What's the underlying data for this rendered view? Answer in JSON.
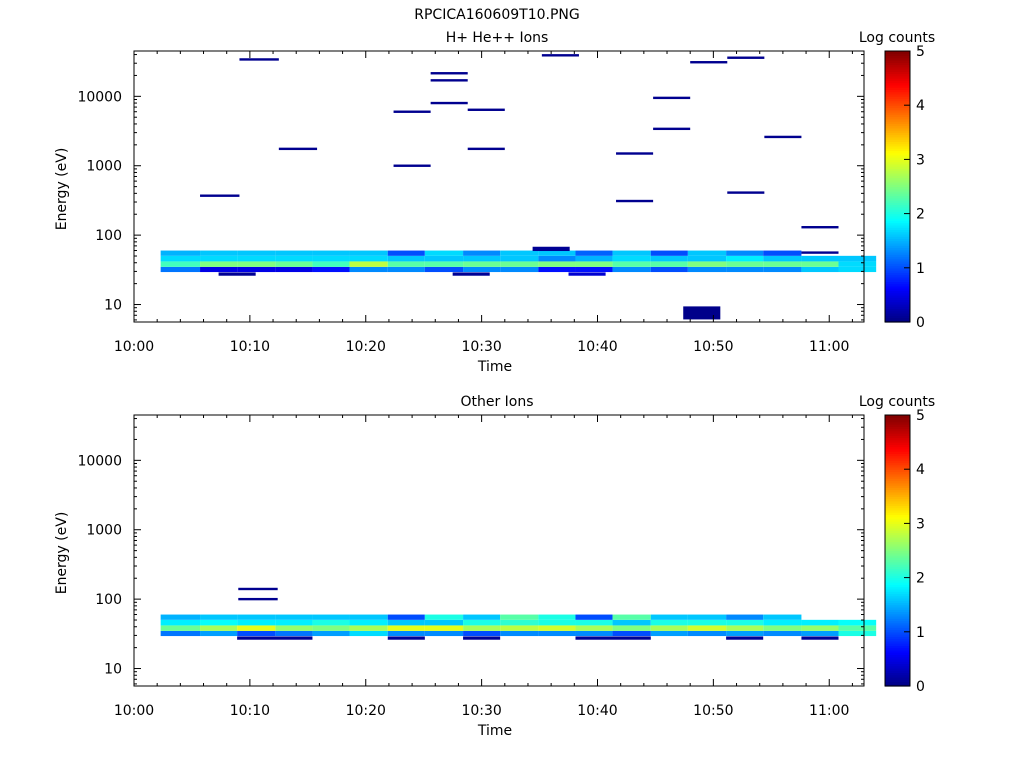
{
  "figure_title": "RPCICA160609T10.PNG",
  "chart_data": [
    {
      "type": "heatmap",
      "title": "H+ He++ Ions",
      "xlabel": "Time",
      "ylabel": "Energy (eV)",
      "x_range": [
        "10:00",
        "11:03"
      ],
      "x_ticks": [
        "10:00",
        "10:10",
        "10:20",
        "10:30",
        "10:40",
        "10:50",
        "11:00"
      ],
      "y_scale": "log",
      "y_range": [
        5.6,
        45000
      ],
      "y_ticks": [
        "10",
        "100",
        "1000",
        "10000"
      ],
      "colorbar": {
        "label": "Log counts",
        "ticks": [
          "0",
          "1",
          "2",
          "3",
          "4",
          "5"
        ],
        "range": [
          0,
          5
        ],
        "colormap": "jet"
      },
      "time_bins_min": [
        2.3,
        5.7,
        8.9,
        12.2,
        15.4,
        18.6,
        21.9,
        25.1,
        28.4,
        31.6,
        34.9,
        38.1,
        41.3,
        44.6,
        47.8,
        51.1,
        54.3,
        57.6,
        60.8
      ],
      "energy_rows_eV": [
        32,
        38,
        46,
        55
      ],
      "grid_rows": [
        [
          1.2,
          0.5,
          0.5,
          0.5,
          0.7,
          1.3,
          1.3,
          1.0,
          1.3,
          1.3,
          0.7,
          0.7,
          1.3,
          1.0,
          1.3,
          1.3,
          1.3,
          1.6,
          1.7
        ],
        [
          2.2,
          2.5,
          2.5,
          2.4,
          2.2,
          2.8,
          2.3,
          2.3,
          2.4,
          2.4,
          2.5,
          2.5,
          2.3,
          2.3,
          2.5,
          2.4,
          2.4,
          2.4,
          1.7
        ],
        [
          1.7,
          1.7,
          1.7,
          1.7,
          1.7,
          1.7,
          1.6,
          1.6,
          1.6,
          1.6,
          1.3,
          1.5,
          1.7,
          1.6,
          1.6,
          1.8,
          1.6,
          1.6,
          1.6
        ],
        [
          1.5,
          1.6,
          1.6,
          1.6,
          1.6,
          1.6,
          1.0,
          1.7,
          1.3,
          1.6,
          1.6,
          1.1,
          1.6,
          1.0,
          1.6,
          1.3,
          1.0,
          0,
          0
        ]
      ],
      "extra_cells": [
        {
          "t0": 7.3,
          "t1": 10.5,
          "e0": 26,
          "e1": 29,
          "value": 0.1
        },
        {
          "t0": 27.5,
          "t1": 30.7,
          "e0": 26,
          "e1": 29,
          "value": 0.1
        },
        {
          "t0": 37.5,
          "t1": 40.7,
          "e0": 26,
          "e1": 29,
          "value": 0.4
        },
        {
          "t0": 34.4,
          "t1": 37.6,
          "e0": 59,
          "e1": 68,
          "value": 0.1
        },
        {
          "t0": 47.4,
          "t1": 50.6,
          "e0": 6.1,
          "e1": 9.4,
          "value": 0.05
        }
      ],
      "sparse_segments": [
        {
          "t0": 5.7,
          "t1": 9.1,
          "e": 370
        },
        {
          "t0": 9.1,
          "t1": 12.5,
          "e": 34000
        },
        {
          "t0": 12.5,
          "t1": 15.8,
          "e": 1750
        },
        {
          "t0": 22.4,
          "t1": 25.6,
          "e": 6000
        },
        {
          "t0": 22.4,
          "t1": 25.6,
          "e": 1000
        },
        {
          "t0": 25.6,
          "t1": 28.8,
          "e": 21500
        },
        {
          "t0": 25.6,
          "t1": 28.8,
          "e": 17000
        },
        {
          "t0": 25.6,
          "t1": 28.8,
          "e": 8000
        },
        {
          "t0": 28.8,
          "t1": 32.0,
          "e": 6400
        },
        {
          "t0": 28.8,
          "t1": 32.0,
          "e": 1750
        },
        {
          "t0": 35.2,
          "t1": 38.4,
          "e": 39000
        },
        {
          "t0": 41.6,
          "t1": 44.8,
          "e": 1500
        },
        {
          "t0": 41.6,
          "t1": 44.8,
          "e": 310
        },
        {
          "t0": 44.8,
          "t1": 48.0,
          "e": 9500
        },
        {
          "t0": 44.8,
          "t1": 48.0,
          "e": 3400
        },
        {
          "t0": 48.0,
          "t1": 51.2,
          "e": 31000
        },
        {
          "t0": 51.2,
          "t1": 54.4,
          "e": 36000
        },
        {
          "t0": 51.2,
          "t1": 54.4,
          "e": 410
        },
        {
          "t0": 54.4,
          "t1": 57.6,
          "e": 2600
        },
        {
          "t0": 57.6,
          "t1": 60.8,
          "e": 130
        },
        {
          "t0": 57.6,
          "t1": 60.8,
          "e": 56
        }
      ]
    },
    {
      "type": "heatmap",
      "title": "Other Ions",
      "xlabel": "Time",
      "ylabel": "Energy (eV)",
      "x_range": [
        "10:00",
        "11:03"
      ],
      "x_ticks": [
        "10:00",
        "10:10",
        "10:20",
        "10:30",
        "10:40",
        "10:50",
        "11:00"
      ],
      "y_scale": "log",
      "y_range": [
        5.6,
        45000
      ],
      "y_ticks": [
        "10",
        "100",
        "1000",
        "10000"
      ],
      "colorbar": {
        "label": "Log counts",
        "ticks": [
          "0",
          "1",
          "2",
          "3",
          "4",
          "5"
        ],
        "range": [
          0,
          5
        ],
        "colormap": "jet"
      },
      "time_bins_min": [
        2.3,
        5.7,
        8.9,
        12.2,
        15.4,
        18.6,
        21.9,
        25.1,
        28.4,
        31.6,
        34.9,
        38.1,
        41.3,
        44.6,
        47.8,
        51.1,
        54.3,
        57.6,
        60.8
      ],
      "energy_rows_eV": [
        32,
        38,
        46,
        55
      ],
      "grid_rows": [
        [
          1.2,
          1.4,
          1.0,
          1.2,
          1.4,
          1.7,
          1.3,
          1.3,
          1.0,
          1.3,
          1.3,
          1.3,
          1.0,
          1.4,
          1.3,
          1.4,
          1.3,
          1.4,
          2.0
        ],
        [
          2.4,
          2.7,
          3.0,
          2.6,
          2.5,
          2.7,
          3.0,
          3.0,
          2.7,
          2.8,
          2.9,
          2.7,
          2.5,
          2.7,
          2.9,
          2.7,
          2.5,
          2.6,
          2.3
        ],
        [
          1.8,
          1.9,
          1.8,
          1.8,
          2.0,
          1.8,
          1.6,
          1.6,
          2.0,
          2.1,
          2.0,
          2.0,
          1.6,
          2.0,
          2.0,
          2.0,
          1.8,
          1.8,
          1.9
        ],
        [
          1.5,
          1.6,
          1.6,
          1.6,
          1.6,
          1.6,
          1.0,
          2.0,
          1.6,
          2.3,
          2.0,
          1.0,
          2.3,
          1.6,
          1.6,
          1.3,
          1.6,
          0,
          0
        ]
      ],
      "extra_cells": [
        {
          "t0": 8.9,
          "t1": 15.4,
          "e0": 26,
          "e1": 29,
          "value": 0.1
        },
        {
          "t0": 21.9,
          "t1": 25.1,
          "e0": 26,
          "e1": 29,
          "value": 0.1
        },
        {
          "t0": 28.4,
          "t1": 31.6,
          "e0": 26,
          "e1": 29,
          "value": 0.1
        },
        {
          "t0": 38.1,
          "t1": 44.6,
          "e0": 26,
          "e1": 29,
          "value": 0.1
        },
        {
          "t0": 51.1,
          "t1": 54.3,
          "e0": 26,
          "e1": 29,
          "value": 0.1
        },
        {
          "t0": 57.6,
          "t1": 60.8,
          "e0": 26,
          "e1": 29,
          "value": 0.1
        }
      ],
      "sparse_segments": [
        {
          "t0": 9.0,
          "t1": 12.4,
          "e": 140
        },
        {
          "t0": 9.0,
          "t1": 12.4,
          "e": 100
        }
      ]
    }
  ]
}
